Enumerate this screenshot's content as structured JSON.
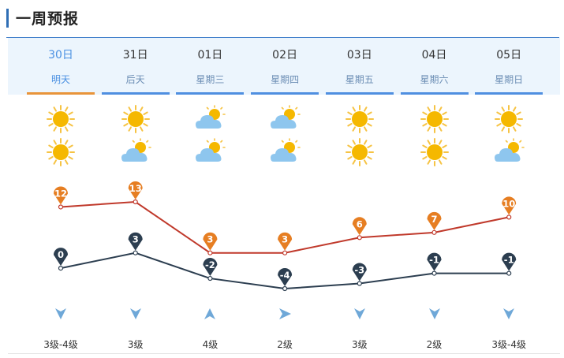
{
  "title": "一周预报",
  "days": [
    {
      "date": "30日",
      "name": "明天",
      "active": true,
      "icon_day": "sun-icon",
      "icon_night": "sun-icon",
      "high": 12,
      "low": 0,
      "wind_dir": "down-arrow-icon",
      "wind_level": "3级-4级"
    },
    {
      "date": "31日",
      "name": "后天",
      "active": false,
      "icon_day": "sun-icon",
      "icon_night": "cloudy-icon",
      "high": 13,
      "low": 3,
      "wind_dir": "down-arrow-icon",
      "wind_level": "3级"
    },
    {
      "date": "01日",
      "name": "星期三",
      "active": false,
      "icon_day": "cloudy-icon",
      "icon_night": "cloudy-icon",
      "high": 3,
      "low": -2,
      "wind_dir": "up-arrow-icon",
      "wind_level": "4级"
    },
    {
      "date": "02日",
      "name": "星期四",
      "active": false,
      "icon_day": "cloudy-icon",
      "icon_night": "cloudy-icon",
      "high": 3,
      "low": -4,
      "wind_dir": "right-arrow-icon",
      "wind_level": "2级"
    },
    {
      "date": "03日",
      "name": "星期五",
      "active": false,
      "icon_day": "sun-icon",
      "icon_night": "sun-icon",
      "high": 6,
      "low": -3,
      "wind_dir": "down-arrow-icon",
      "wind_level": "3级"
    },
    {
      "date": "04日",
      "name": "星期六",
      "active": false,
      "icon_day": "sun-icon",
      "icon_night": "sun-icon",
      "high": 7,
      "low": -1,
      "wind_dir": "down-arrow-icon",
      "wind_level": "2级"
    },
    {
      "date": "05日",
      "name": "星期日",
      "active": false,
      "icon_day": "sun-icon",
      "icon_night": "cloudy-icon",
      "high": 10,
      "low": -1,
      "wind_dir": "down-arrow-icon",
      "wind_level": "3级-4级"
    }
  ],
  "colors": {
    "high_line": "#c0392b",
    "high_marker": "#e67e22",
    "low_line": "#2c3e50",
    "low_marker": "#2c3e50",
    "wind_arrow": "#6fa8d8",
    "active_tab": "#e8943a",
    "tab_bar": "#4f8fe0"
  }
}
